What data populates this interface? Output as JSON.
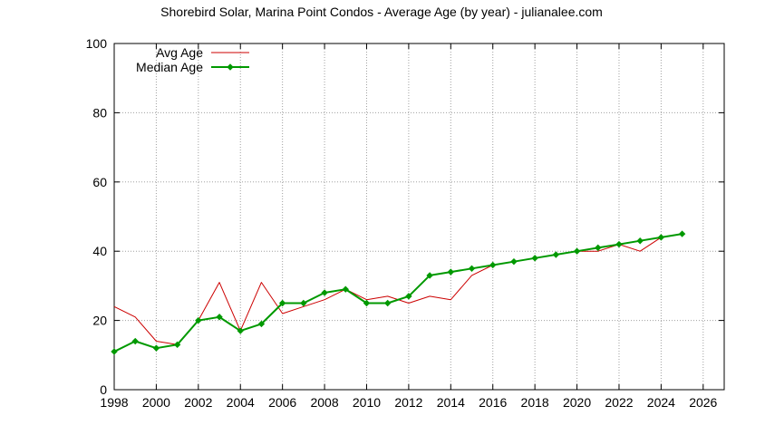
{
  "chart_data": {
    "type": "line",
    "title": "Shorebird Solar, Marina Point Condos - Average Age (by year) - julianalee.com",
    "xlabel": "",
    "ylabel": "",
    "xlim": [
      1998,
      2027
    ],
    "ylim": [
      0,
      100
    ],
    "x_ticks": [
      "1998",
      "2000",
      "2002",
      "2004",
      "2006",
      "2008",
      "2010",
      "2012",
      "2014",
      "2016",
      "2018",
      "2020",
      "2022",
      "2024",
      "2026"
    ],
    "y_ticks": [
      "0",
      "20",
      "40",
      "60",
      "80",
      "100"
    ],
    "grid": true,
    "legend_position": "top-left",
    "series": [
      {
        "name": "Avg Age",
        "color": "#cc0000",
        "marker": "none",
        "x": [
          1998,
          1999,
          2000,
          2001,
          2002,
          2003,
          2004,
          2005,
          2006,
          2007,
          2008,
          2009,
          2010,
          2011,
          2012,
          2013,
          2014,
          2015,
          2016,
          2017,
          2018,
          2019,
          2020,
          2021,
          2022,
          2023,
          2024,
          2025
        ],
        "values": [
          24,
          21,
          14,
          13,
          20,
          31,
          17,
          31,
          22,
          24,
          26,
          29,
          26,
          27,
          25,
          27,
          26,
          33,
          36,
          37,
          38,
          39,
          40,
          40,
          42,
          40,
          44,
          45
        ]
      },
      {
        "name": "Median Age",
        "color": "#009900",
        "marker": "diamond",
        "x": [
          1998,
          1999,
          2000,
          2001,
          2002,
          2003,
          2004,
          2005,
          2006,
          2007,
          2008,
          2009,
          2010,
          2011,
          2012,
          2013,
          2014,
          2015,
          2016,
          2017,
          2018,
          2019,
          2020,
          2021,
          2022,
          2023,
          2024,
          2025
        ],
        "values": [
          11,
          14,
          12,
          13,
          20,
          21,
          17,
          19,
          25,
          25,
          28,
          29,
          25,
          25,
          27,
          33,
          34,
          35,
          36,
          37,
          38,
          39,
          40,
          41,
          42,
          43,
          44,
          45
        ]
      }
    ]
  }
}
